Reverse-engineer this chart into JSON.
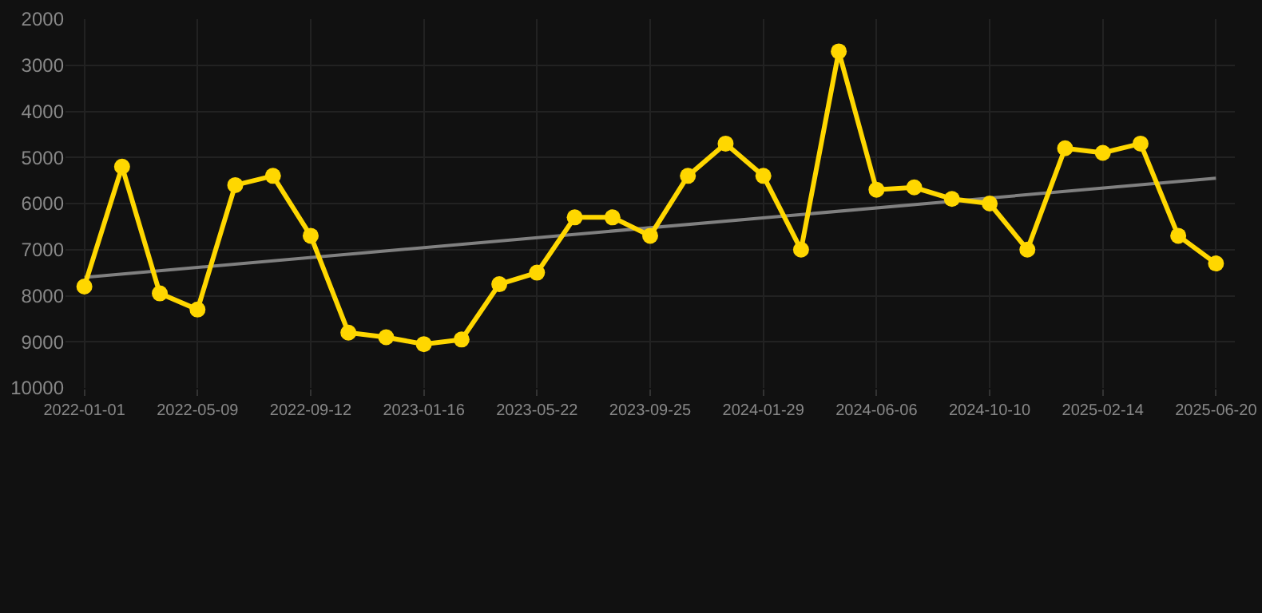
{
  "chart_data": {
    "type": "line",
    "categories": [
      "2022-01-01",
      null,
      null,
      "2022-05-09",
      null,
      null,
      "2022-09-12",
      null,
      null,
      "2023-01-16",
      null,
      null,
      "2023-05-22",
      null,
      null,
      "2023-09-25",
      null,
      null,
      "2024-01-29",
      null,
      null,
      "2024-06-06",
      null,
      null,
      "2024-10-10",
      null,
      null,
      "2025-02-14",
      null,
      null,
      "2025-06-20"
    ],
    "series": [
      {
        "color": "#ffd700",
        "marker": "circle",
        "values": [
          7800,
          5200,
          7950,
          8300,
          5600,
          5400,
          6700,
          8800,
          8900,
          9050,
          8950,
          7750,
          7500,
          6300,
          6300,
          6700,
          5400,
          4700,
          5400,
          7000,
          2700,
          5700,
          5650,
          5900,
          6000,
          7000,
          4800,
          4900,
          4700,
          6700,
          7300
        ]
      },
      {
        "type": "line",
        "color": "#808080",
        "marker": "none",
        "values": [
          7600,
          null,
          null,
          null,
          null,
          null,
          null,
          null,
          null,
          null,
          null,
          null,
          null,
          null,
          null,
          null,
          null,
          null,
          null,
          null,
          null,
          null,
          null,
          null,
          null,
          null,
          null,
          null,
          null,
          null,
          5450
        ]
      }
    ],
    "ylim": [
      10000,
      2000
    ],
    "yticks": [
      2000,
      3000,
      4000,
      5000,
      6000,
      7000,
      8000,
      9000,
      10000
    ],
    "grid": true
  }
}
